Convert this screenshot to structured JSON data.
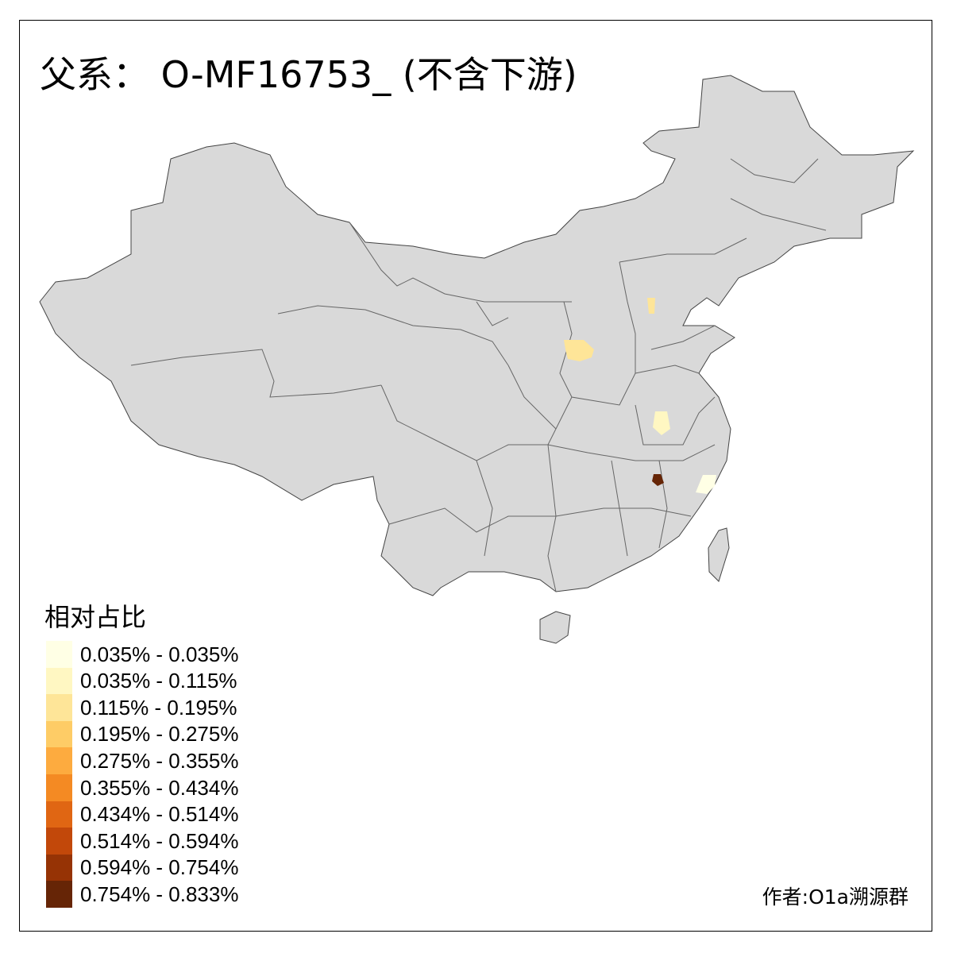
{
  "title": "父系： O-MF16753_ (不含下游)",
  "legend": {
    "title": "相对占比",
    "items": [
      {
        "label": "0.035% - 0.035%",
        "color": "#FFFFE5"
      },
      {
        "label": "0.035% - 0.115%",
        "color": "#FFF7C2"
      },
      {
        "label": "0.115% - 0.195%",
        "color": "#FEE598"
      },
      {
        "label": "0.195% - 0.275%",
        "color": "#FECC66"
      },
      {
        "label": "0.275% - 0.355%",
        "color": "#FDAB3F"
      },
      {
        "label": "0.355% - 0.434%",
        "color": "#F48A23"
      },
      {
        "label": "0.434% - 0.514%",
        "color": "#E06613"
      },
      {
        "label": "0.514% - 0.594%",
        "color": "#C2480A"
      },
      {
        "label": "0.594% - 0.754%",
        "color": "#963305"
      },
      {
        "label": "0.754% - 0.833%",
        "color": "#662506"
      }
    ]
  },
  "map": {
    "base_color": "#D9D9D9",
    "border_color": "#666666",
    "highlighted_regions": [
      {
        "area": "Shanxi (west)",
        "class": 2
      },
      {
        "area": "Hebei (Baoding area)",
        "class": 2
      },
      {
        "area": "Anhui (central)",
        "class": 1
      },
      {
        "area": "Zhejiang (south)",
        "class": 0
      },
      {
        "area": "Jiangxi (north)",
        "class": 9
      }
    ]
  },
  "credit": "作者:O1a溯源群"
}
